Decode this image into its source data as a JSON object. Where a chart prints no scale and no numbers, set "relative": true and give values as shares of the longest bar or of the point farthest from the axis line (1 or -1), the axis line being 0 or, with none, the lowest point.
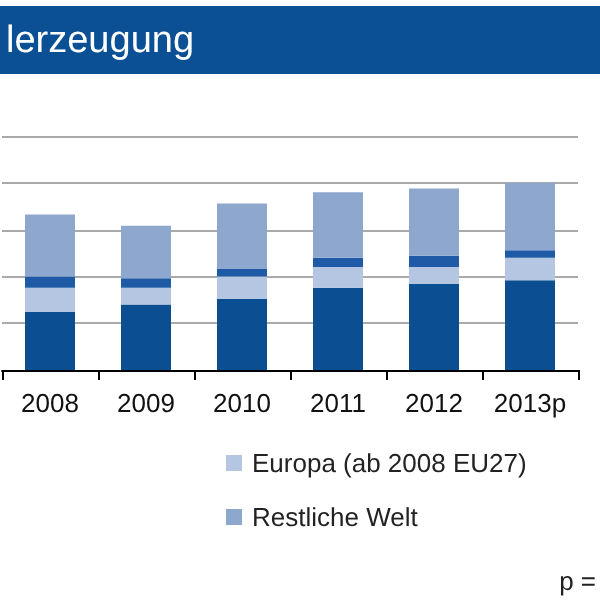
{
  "chart_data": {
    "type": "bar",
    "title": "lerzeugung",
    "categories": [
      "2008",
      "2009",
      "2010",
      "2011",
      "2012",
      "2013p"
    ],
    "stacked": true,
    "relative": true,
    "grid": "y",
    "legend": "bottom",
    "annotations": [
      "p ="
    ],
    "series": [
      {
        "color": "#0b4f92",
        "values": [
          0.31,
          0.35,
          0.38,
          0.44,
          0.46,
          0.48
        ]
      },
      {
        "name": "Europa (ab 2008 EU27)",
        "color": "#b4c6e2",
        "values": [
          0.13,
          0.09,
          0.12,
          0.11,
          0.09,
          0.12
        ]
      },
      {
        "color": "#1f5aa6",
        "values": [
          0.06,
          0.05,
          0.04,
          0.05,
          0.06,
          0.04
        ]
      },
      {
        "name": "Restliche Welt",
        "color": "#8ea7cf",
        "values": [
          0.33,
          0.28,
          0.35,
          0.35,
          0.36,
          0.36
        ]
      }
    ]
  }
}
